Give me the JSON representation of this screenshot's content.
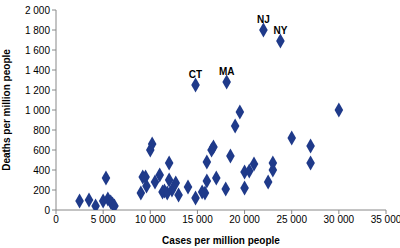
{
  "chart_data": {
    "type": "scatter",
    "x_label": "Cases per million people",
    "y_label": "Deaths per million people",
    "color": "#1f3a8a",
    "marker": "diamond",
    "grid": false,
    "x": [
      2500,
      3500,
      4200,
      5000,
      5300,
      5500,
      5800,
      6000,
      6200,
      9000,
      9200,
      9500,
      9600,
      10000,
      10200,
      10500,
      11000,
      11300,
      11500,
      11800,
      12000,
      12000,
      12300,
      12700,
      13000,
      14000,
      14800,
      15500,
      15800,
      16000,
      16000,
      16500,
      16700,
      17000,
      18000,
      18500,
      19000,
      19500,
      20000,
      20000,
      20500,
      21000,
      22500,
      23000,
      23000,
      25000,
      27000,
      27000,
      30000,
      22000,
      23800,
      18100,
      14800
    ],
    "values": [
      90,
      100,
      40,
      90,
      320,
      110,
      80,
      60,
      40,
      170,
      330,
      330,
      240,
      600,
      660,
      280,
      350,
      180,
      190,
      170,
      470,
      300,
      200,
      270,
      150,
      230,
      120,
      180,
      170,
      290,
      480,
      600,
      630,
      320,
      210,
      540,
      840,
      980,
      220,
      380,
      390,
      460,
      280,
      470,
      400,
      720,
      640,
      470,
      1000,
      1800,
      1690,
      1280,
      1250
    ],
    "xlim": [
      0,
      35000
    ],
    "xticks": [
      0,
      {
        "value": 5000,
        "label": "5 000"
      },
      {
        "value": 10000,
        "label": "10 000"
      },
      {
        "value": 15000,
        "label": "15 000"
      },
      {
        "value": 20000,
        "label": "20 000"
      },
      {
        "value": 25000,
        "label": "25 000"
      },
      {
        "value": 30000,
        "label": "30 000"
      },
      {
        "value": 35000,
        "label": "35 000"
      }
    ],
    "ylim": [
      0,
      2000
    ],
    "yticks": [
      0,
      200,
      400,
      600,
      800,
      {
        "value": 1000,
        "label": "1 000"
      },
      {
        "value": 1200,
        "label": "1 200"
      },
      {
        "value": 1400,
        "label": "1 400"
      },
      {
        "value": 1600,
        "label": "1 600"
      },
      {
        "value": 1800,
        "label": "1 800"
      },
      {
        "value": 2000,
        "label": "2 000"
      }
    ],
    "annotations": [
      {
        "text": "NJ",
        "x": 22000,
        "y": 1800
      },
      {
        "text": "NY",
        "x": 23800,
        "y": 1690
      },
      {
        "text": "MA",
        "x": 18100,
        "y": 1280
      },
      {
        "text": "CT",
        "x": 14800,
        "y": 1250
      }
    ]
  }
}
